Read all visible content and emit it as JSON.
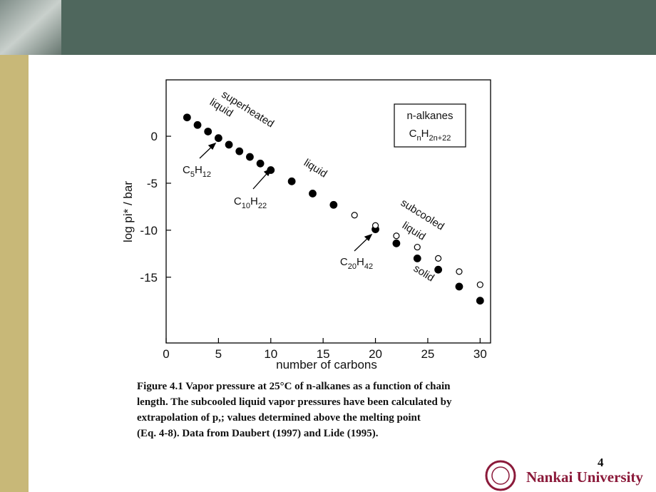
{
  "chart_data": {
    "type": "scatter",
    "xlabel": "number of carbons",
    "ylabel": "log pi* / bar",
    "xlim": [
      0,
      31
    ],
    "xticks": [
      0,
      5,
      10,
      15,
      20,
      25,
      30
    ],
    "ylim": [
      -22,
      6
    ],
    "yticks": [
      0,
      -5,
      -10,
      -15
    ],
    "series": [
      {
        "marker": "filled",
        "color": "#000000",
        "x": [
          2,
          3,
          4,
          5,
          6,
          7,
          8,
          9,
          10,
          12,
          14,
          16,
          20,
          22,
          24,
          26,
          28,
          30
        ],
        "values": [
          2.0,
          1.2,
          0.5,
          -0.2,
          -0.9,
          -1.6,
          -2.2,
          -2.9,
          -3.6,
          -4.8,
          -6.1,
          -7.3,
          -9.9,
          -11.4,
          -13.0,
          -14.2,
          -16.0,
          -17.5
        ]
      },
      {
        "marker": "open",
        "color": "#000000",
        "x": [
          18,
          20,
          22,
          24,
          26,
          28,
          30
        ],
        "values": [
          -8.4,
          -9.5,
          -10.6,
          -11.8,
          -13.0,
          -14.4,
          -15.8
        ]
      }
    ],
    "annotations": [
      "superheated",
      "liquid",
      "liquid",
      "subcooled",
      "liquid",
      "solid",
      "C5H12",
      "C10H22",
      "C20H42"
    ],
    "legend_box": [
      "n-alkanes",
      "CnH2n+22"
    ]
  },
  "caption": [
    "Figure 4.1   Vapor pressure at 25°C of n-alkanes as a function of chain",
    "length. The subcooled liquid vapor pressures have been calculated by",
    "extrapolation of p,; values determined above the melting point",
    "(Eq. 4-8). Data from Daubert (1997) and Lide (1995)."
  ],
  "page_number": "4",
  "university": "Nankai University"
}
